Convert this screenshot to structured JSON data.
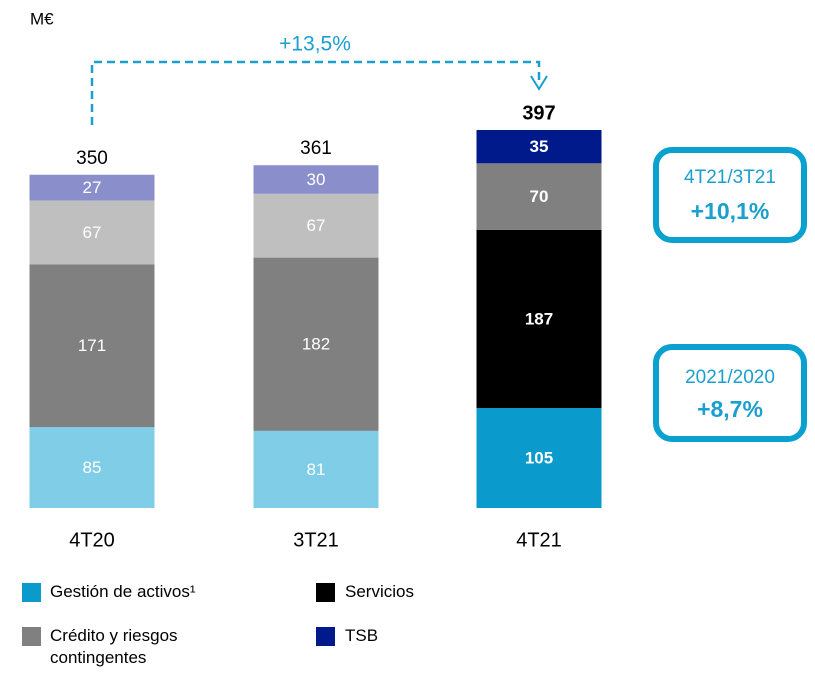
{
  "chart_data": {
    "type": "stacked_bar",
    "unit_label": "M€",
    "categories": [
      "4T20",
      "3T21",
      "4T21"
    ],
    "highlight_category": "4T21",
    "series": [
      {
        "name": "Gestión de activos¹",
        "color": "#0a9acb",
        "colors": [
          "#7fcde6",
          "#7fcde6",
          "#0a9acb"
        ],
        "values": [
          85,
          81,
          105
        ]
      },
      {
        "name": "Servicios",
        "color": "#000000",
        "colors": [
          "#808080",
          "#808080",
          "#000000"
        ],
        "values": [
          171,
          182,
          187
        ]
      },
      {
        "name": "Crédito y riesgos contingentes",
        "color": "#808080",
        "colors": [
          "#bfbfbf",
          "#bfbfbf",
          "#808080"
        ],
        "values": [
          67,
          67,
          70
        ]
      },
      {
        "name": "TSB",
        "color": "#001a8c",
        "colors": [
          "#8a8fcc",
          "#8a8fcc",
          "#001a8c"
        ],
        "values": [
          27,
          30,
          35
        ]
      }
    ],
    "totals": [
      350,
      361,
      397
    ],
    "annotations": {
      "growth_arrow": "+13,5%",
      "box1": {
        "title": "4T21/3T21",
        "value": "+10,1%"
      },
      "box2": {
        "title": "2021/2020",
        "value": "+8,7%"
      }
    },
    "legend_order": [
      0,
      1,
      2,
      3
    ]
  }
}
